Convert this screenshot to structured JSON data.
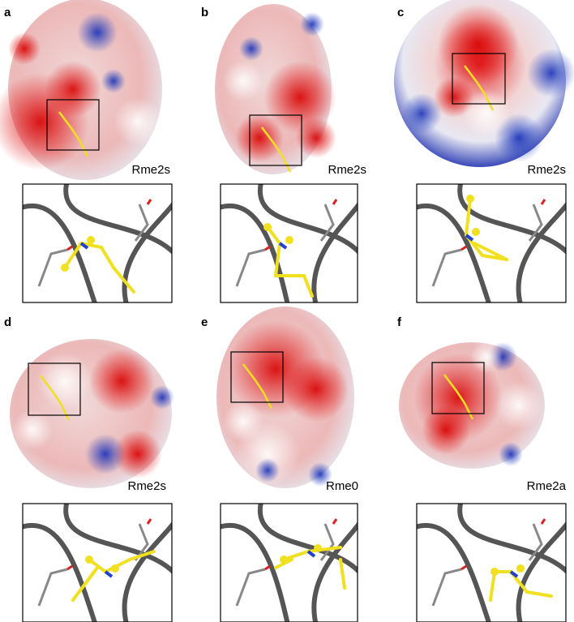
{
  "panels": [
    {
      "letter": "a",
      "label": "Rme2s"
    },
    {
      "letter": "b",
      "label": "Rme2s"
    },
    {
      "letter": "c",
      "label": "Rme2s"
    },
    {
      "letter": "d",
      "label": "Rme2s"
    },
    {
      "letter": "e",
      "label": "Rme0"
    },
    {
      "letter": "f",
      "label": "Rme2a"
    }
  ]
}
